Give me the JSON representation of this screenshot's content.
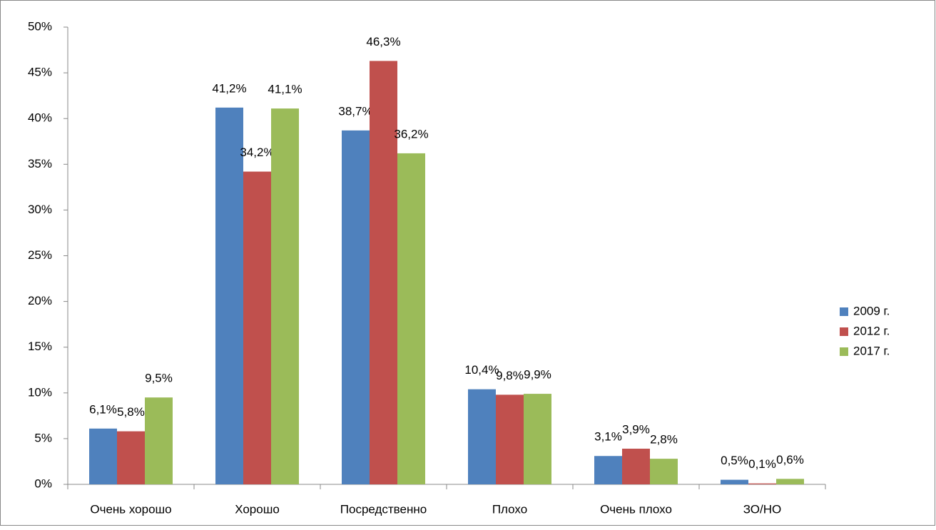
{
  "chart_data": {
    "type": "bar",
    "categories": [
      "Очень хорошо",
      "Хорошо",
      "Посредственно",
      "Плохо",
      "Очень плохо",
      "ЗО/НО"
    ],
    "series": [
      {
        "name": "2009 г.",
        "color": "#4f81bd",
        "values": [
          6.1,
          41.2,
          38.7,
          10.4,
          3.1,
          0.5
        ],
        "value_labels": [
          "6,1%",
          "41,2%",
          "38,7%",
          "10,4%",
          "3,1%",
          "0,5%"
        ]
      },
      {
        "name": "2012 г.",
        "color": "#c0504d",
        "values": [
          5.8,
          34.2,
          46.3,
          9.8,
          3.9,
          0.1
        ],
        "value_labels": [
          "5,8%",
          "34,2%",
          "46,3%",
          "9,8%",
          "3,9%",
          "0,1%"
        ]
      },
      {
        "name": "2017 г.",
        "color": "#9bbb59",
        "values": [
          9.5,
          41.1,
          36.2,
          9.9,
          2.8,
          0.6
        ],
        "value_labels": [
          "9,5%",
          "41,1%",
          "36,2%",
          "9,9%",
          "2,8%",
          "0,6%"
        ]
      }
    ],
    "ylim": [
      0,
      50
    ],
    "yticks": [
      {
        "value": 0,
        "label": "0%"
      },
      {
        "value": 5,
        "label": "5%"
      },
      {
        "value": 10,
        "label": "10%"
      },
      {
        "value": 15,
        "label": "15%"
      },
      {
        "value": 20,
        "label": "20%"
      },
      {
        "value": 25,
        "label": "25%"
      },
      {
        "value": 30,
        "label": "30%"
      },
      {
        "value": 35,
        "label": "35%"
      },
      {
        "value": 40,
        "label": "40%"
      },
      {
        "value": 45,
        "label": "45%"
      },
      {
        "value": 50,
        "label": "50%"
      }
    ],
    "grid": false,
    "legend": "right"
  }
}
